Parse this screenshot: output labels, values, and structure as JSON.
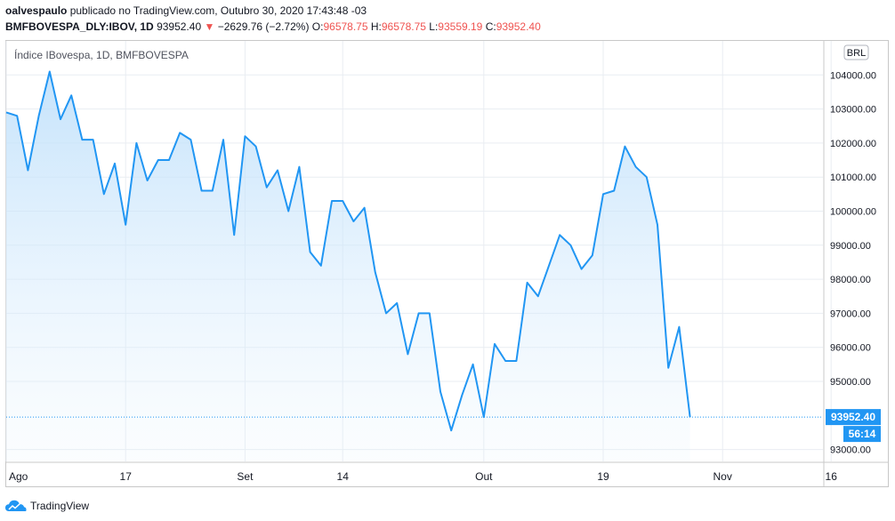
{
  "header": {
    "author": "oalvespaulo",
    "published": "publicado no TradingView.com, Outubro 30, 2020 17:43:48 -03",
    "symbol": "BMFBOVESPA_DLY:IBOV, 1D",
    "last": "93952.40",
    "change": "−2629.76 (−2.72%)",
    "o_label": "O:",
    "o_value": "96578.75",
    "h_label": "H:",
    "h_value": "96578.75",
    "l_label": "L:",
    "l_value": "93559.19",
    "c_label": "C:",
    "c_value": "93952.40"
  },
  "legend_title": "Índice IBovespa, 1D, BMFBOVESPA",
  "currency": "BRL",
  "price_tag": "93952.40",
  "countdown": "56:14",
  "brand": "TradingView",
  "colors": {
    "line": "#2196f3",
    "fill_top": "#bbdefb",
    "down": "#ef5350",
    "tag": "#2196f3",
    "grid": "#e9edf2"
  },
  "chart_data": {
    "type": "area",
    "title": "Índice IBovespa, 1D, BMFBOVESPA",
    "x_ticks": [
      "Ago",
      "17",
      "Set",
      "14",
      "Out",
      "19",
      "Nov",
      "16"
    ],
    "y_ticks": [
      "104000.00",
      "103000.00",
      "102000.00",
      "101000.00",
      "100000.00",
      "99000.00",
      "98000.00",
      "97000.00",
      "96000.00",
      "95000.00",
      "93000.00"
    ],
    "ylim": [
      92650,
      105000
    ],
    "grid": true,
    "y_axis_side": "right",
    "series": [
      {
        "values": [
          102900,
          102800,
          101200,
          102800,
          104100,
          102700,
          103400,
          102100,
          102100,
          100500,
          101400,
          99600,
          102000,
          100900,
          101500,
          101500,
          102300,
          102100,
          100600,
          100600,
          102100,
          99300,
          102200,
          101900,
          100700,
          101200,
          100000,
          101300,
          98800,
          98400,
          100300,
          100300,
          99700,
          100100,
          98200,
          97000,
          97300,
          95800,
          97000,
          97000,
          94700,
          93559,
          94600,
          95500,
          93952,
          96100,
          95600,
          95600,
          97900,
          97500,
          98400,
          99300,
          99000,
          98300,
          98700,
          100500,
          100600,
          101900,
          101300,
          101000,
          99600,
          95400,
          96600,
          93952
        ]
      }
    ]
  }
}
